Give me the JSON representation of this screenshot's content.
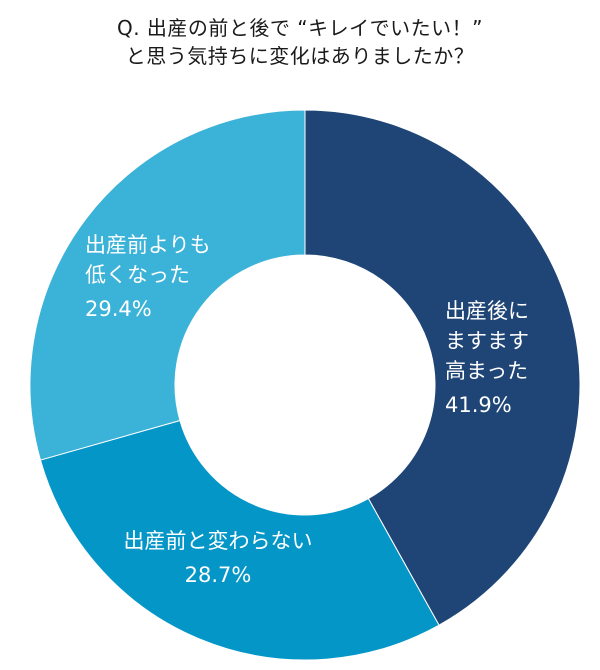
{
  "chart_data": {
    "type": "pie",
    "variant": "donut",
    "title_lines": [
      "Q. 出産の前と後で “キレイでいたい！”",
      "と思う気持ちに変化はありましたか？"
    ],
    "start_angle_deg": 0,
    "direction": "clockwise",
    "slices": [
      {
        "label_lines": [
          "出産後に",
          "ますます",
          "高まった"
        ],
        "value": 41.9,
        "value_label": "41.9%",
        "color": "#1f4576"
      },
      {
        "label_lines": [
          "出産前と変わらない"
        ],
        "value": 28.7,
        "value_label": "28.7%",
        "color": "#0596c8"
      },
      {
        "label_lines": [
          "出産前よりも",
          "低くなった"
        ],
        "value": 29.4,
        "value_label": "29.4%",
        "color": "#3bb2d8"
      }
    ],
    "legend": "none"
  }
}
